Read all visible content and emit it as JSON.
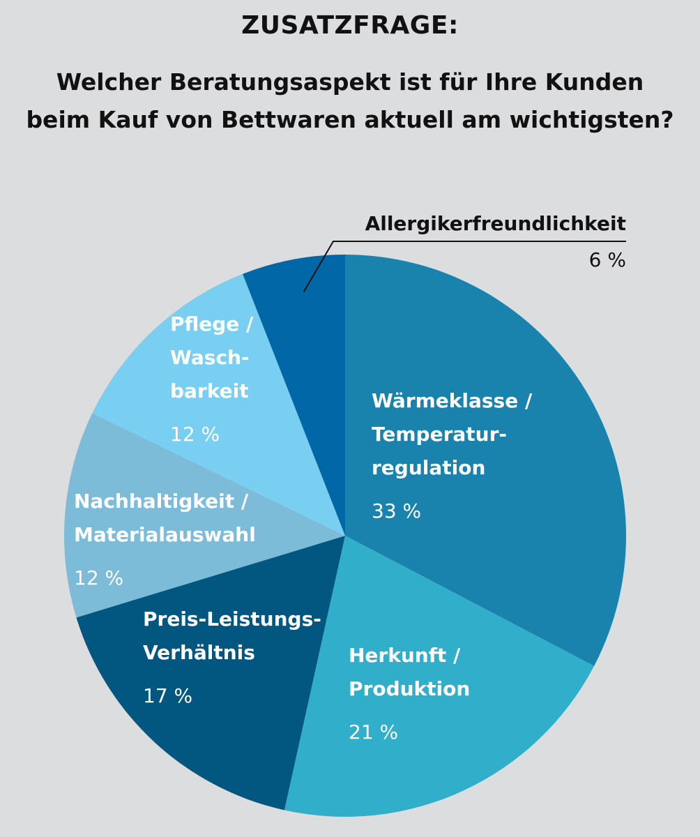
{
  "header": {
    "kicker": "ZUSATZFRAGE:",
    "question_line1": "Welcher Beratungsaspekt ist für Ihre Kunden",
    "question_line2": "beim Kauf von Bettwaren aktuell am wichtigsten?"
  },
  "chart_data": {
    "type": "pie",
    "start_angle_deg": 0,
    "direction": "clockwise",
    "slices": [
      {
        "label_lines": [
          "Wärmeklasse /",
          "Temperatur-",
          "regulation"
        ],
        "value": 33,
        "value_label": "33 %",
        "color": "#1a83ad"
      },
      {
        "label_lines": [
          "Herkunft /",
          "Produktion"
        ],
        "value": 21,
        "value_label": "21 %",
        "color": "#31aec9"
      },
      {
        "label_lines": [
          "Preis-Leistungs-",
          "Verhältnis"
        ],
        "value": 17,
        "value_label": "17 %",
        "color": "#015780"
      },
      {
        "label_lines": [
          "Nachhaltigkeit /",
          "Materialauswahl"
        ],
        "value": 12,
        "value_label": "12 %",
        "color": "#7dbcd9"
      },
      {
        "label_lines": [
          "Pflege /",
          "Wasch-",
          "barkeit"
        ],
        "value": 12,
        "value_label": "12 %",
        "color": "#79cff2"
      },
      {
        "label_lines": [
          "Allergikerfreundlichkeit"
        ],
        "value": 6,
        "value_label": "6 %",
        "color": "#0267a7",
        "label_outside": true
      }
    ]
  }
}
